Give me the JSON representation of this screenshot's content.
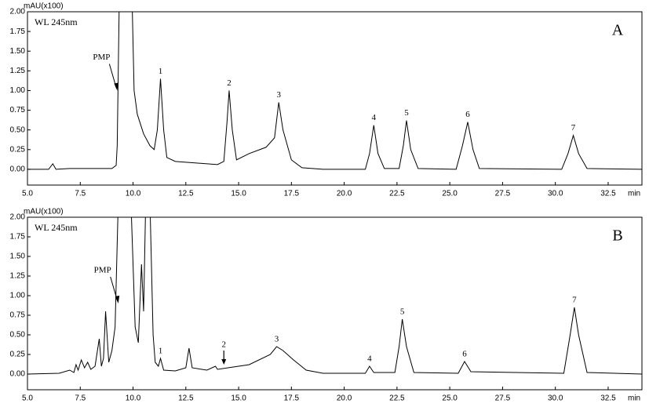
{
  "chart_data": [
    {
      "type": "line",
      "panel_label": "A",
      "wavelength_label": "WL 245nm",
      "y_label": "mAU(x100)",
      "x_label": "min",
      "color": "#000000",
      "xlim": [
        5.0,
        34.1
      ],
      "ylim": [
        -0.2,
        2.0
      ],
      "xticks": [
        {
          "value": 5.0,
          "label": "5.0"
        },
        {
          "value": 7.5,
          "label": "7.5"
        },
        {
          "value": 10.0,
          "label": "10.0"
        },
        {
          "value": 12.5,
          "label": "12.5"
        },
        {
          "value": 15.0,
          "label": "15.0"
        },
        {
          "value": 17.5,
          "label": "17.5"
        },
        {
          "value": 20.0,
          "label": "20.0"
        },
        {
          "value": 22.5,
          "label": "22.5"
        },
        {
          "value": 25.0,
          "label": "25.0"
        },
        {
          "value": 27.5,
          "label": "27.5"
        },
        {
          "value": 30.0,
          "label": "30.0"
        },
        {
          "value": 32.5,
          "label": "32.5"
        }
      ],
      "yticks": [
        {
          "value": 0,
          "label": "0.00"
        },
        {
          "value": 0.25,
          "label": "0.25"
        },
        {
          "value": 0.5,
          "label": "0.50"
        },
        {
          "value": 0.75,
          "label": "0.75"
        },
        {
          "value": 1.0,
          "label": "1.00"
        },
        {
          "value": 1.25,
          "label": "1.25"
        },
        {
          "value": 1.5,
          "label": "1.50"
        },
        {
          "value": 1.75,
          "label": "1.75"
        },
        {
          "value": 2.0,
          "label": "2.00"
        }
      ],
      "x": [
        5.0,
        6.0,
        6.2,
        6.35,
        7.0,
        8.0,
        9.0,
        9.2,
        9.25,
        9.35,
        9.95,
        10.05,
        10.2,
        10.5,
        10.8,
        11.0,
        11.15,
        11.3,
        11.45,
        11.6,
        12.0,
        13.0,
        14.0,
        14.3,
        14.45,
        14.55,
        14.7,
        14.9,
        15.5,
        16.3,
        16.7,
        16.9,
        17.1,
        17.5,
        18.0,
        19.0,
        20.0,
        21.0,
        21.2,
        21.4,
        21.6,
        21.9,
        22.6,
        22.8,
        22.95,
        23.15,
        23.5,
        25.3,
        25.6,
        25.85,
        26.1,
        26.4,
        30.3,
        30.6,
        30.85,
        31.1,
        31.5,
        34.1
      ],
      "values": [
        0.0,
        0.0,
        0.07,
        0.0,
        0.01,
        0.01,
        0.01,
        0.05,
        0.3,
        2.2,
        2.2,
        1.0,
        0.7,
        0.45,
        0.3,
        0.25,
        0.5,
        1.15,
        0.5,
        0.15,
        0.1,
        0.08,
        0.06,
        0.1,
        0.6,
        1.0,
        0.5,
        0.12,
        0.2,
        0.28,
        0.4,
        0.85,
        0.5,
        0.12,
        0.02,
        0.0,
        0.0,
        0.0,
        0.2,
        0.56,
        0.2,
        0.01,
        0.01,
        0.3,
        0.62,
        0.25,
        0.01,
        0.0,
        0.3,
        0.6,
        0.25,
        0.01,
        0.0,
        0.2,
        0.43,
        0.2,
        0.01,
        0.0
      ],
      "peaks": [
        {
          "label": "1",
          "x": 11.3,
          "y": 1.15
        },
        {
          "label": "2",
          "x": 14.55,
          "y": 1.0
        },
        {
          "label": "3",
          "x": 16.9,
          "y": 0.85
        },
        {
          "label": "4",
          "x": 21.4,
          "y": 0.56
        },
        {
          "label": "5",
          "x": 22.95,
          "y": 0.62
        },
        {
          "label": "6",
          "x": 25.85,
          "y": 0.6
        },
        {
          "label": "7",
          "x": 30.85,
          "y": 0.43
        }
      ],
      "annotations": [
        {
          "text": "PMP",
          "x": 9.25,
          "y": 1.0
        }
      ]
    },
    {
      "type": "line",
      "panel_label": "B",
      "wavelength_label": "WL 245nm",
      "y_label": "mAU(x100)",
      "x_label": "min",
      "color": "#000000",
      "xlim": [
        5.0,
        34.1
      ],
      "ylim": [
        -0.2,
        2.0
      ],
      "xticks": [
        {
          "value": 5.0,
          "label": "5.0"
        },
        {
          "value": 7.5,
          "label": "7.5"
        },
        {
          "value": 10.0,
          "label": "10.0"
        },
        {
          "value": 12.5,
          "label": "12.5"
        },
        {
          "value": 15.0,
          "label": "15.0"
        },
        {
          "value": 17.5,
          "label": "17.5"
        },
        {
          "value": 20.0,
          "label": "20.0"
        },
        {
          "value": 22.5,
          "label": "22.5"
        },
        {
          "value": 25.0,
          "label": "25.0"
        },
        {
          "value": 27.5,
          "label": "27.5"
        },
        {
          "value": 30.0,
          "label": "30.0"
        },
        {
          "value": 32.5,
          "label": "32.5"
        }
      ],
      "yticks": [
        {
          "value": 0,
          "label": "0.00"
        },
        {
          "value": 0.25,
          "label": "0.25"
        },
        {
          "value": 0.5,
          "label": "0.50"
        },
        {
          "value": 0.75,
          "label": "0.75"
        },
        {
          "value": 1.0,
          "label": "1.00"
        },
        {
          "value": 1.25,
          "label": "1.25"
        },
        {
          "value": 1.5,
          "label": "1.50"
        },
        {
          "value": 1.75,
          "label": "1.75"
        },
        {
          "value": 2.0,
          "label": "2.00"
        }
      ],
      "x": [
        5.0,
        6.5,
        7.0,
        7.2,
        7.3,
        7.4,
        7.55,
        7.7,
        7.85,
        8.0,
        8.2,
        8.4,
        8.5,
        8.6,
        8.7,
        8.85,
        9.0,
        9.15,
        9.3,
        9.9,
        10.1,
        10.25,
        10.4,
        10.5,
        10.6,
        10.8,
        10.95,
        11.05,
        11.2,
        11.3,
        11.45,
        12.0,
        12.5,
        12.65,
        12.8,
        13.5,
        13.9,
        14.0,
        14.5,
        15.5,
        16.5,
        16.8,
        17.1,
        17.6,
        18.2,
        19.0,
        21.0,
        21.2,
        21.4,
        22.4,
        22.6,
        22.75,
        22.95,
        23.3,
        25.4,
        25.7,
        26.0,
        30.4,
        30.7,
        30.9,
        31.1,
        31.5,
        34.1
      ],
      "values": [
        0.0,
        0.01,
        0.05,
        0.02,
        0.12,
        0.05,
        0.18,
        0.08,
        0.15,
        0.06,
        0.1,
        0.45,
        0.1,
        0.2,
        0.8,
        0.15,
        0.3,
        0.6,
        2.2,
        2.2,
        0.6,
        0.4,
        1.4,
        0.8,
        2.2,
        2.2,
        0.5,
        0.15,
        0.1,
        0.2,
        0.05,
        0.04,
        0.08,
        0.33,
        0.08,
        0.05,
        0.1,
        0.06,
        0.08,
        0.12,
        0.25,
        0.35,
        0.3,
        0.18,
        0.05,
        0.01,
        0.01,
        0.1,
        0.02,
        0.02,
        0.35,
        0.7,
        0.35,
        0.02,
        0.01,
        0.16,
        0.03,
        0.01,
        0.5,
        0.85,
        0.5,
        0.02,
        0.0
      ],
      "peaks": [
        {
          "label": "1",
          "x": 11.3,
          "y": 0.2
        },
        {
          "label": "2",
          "x": 14.3,
          "y": 0.1,
          "arrow": true
        },
        {
          "label": "3",
          "x": 16.8,
          "y": 0.35
        },
        {
          "label": "4",
          "x": 21.2,
          "y": 0.1
        },
        {
          "label": "5",
          "x": 22.75,
          "y": 0.7
        },
        {
          "label": "6",
          "x": 25.7,
          "y": 0.16
        },
        {
          "label": "7",
          "x": 30.9,
          "y": 0.85
        }
      ],
      "annotations": [
        {
          "text": "PMP",
          "x": 9.3,
          "y": 0.9
        }
      ]
    }
  ]
}
